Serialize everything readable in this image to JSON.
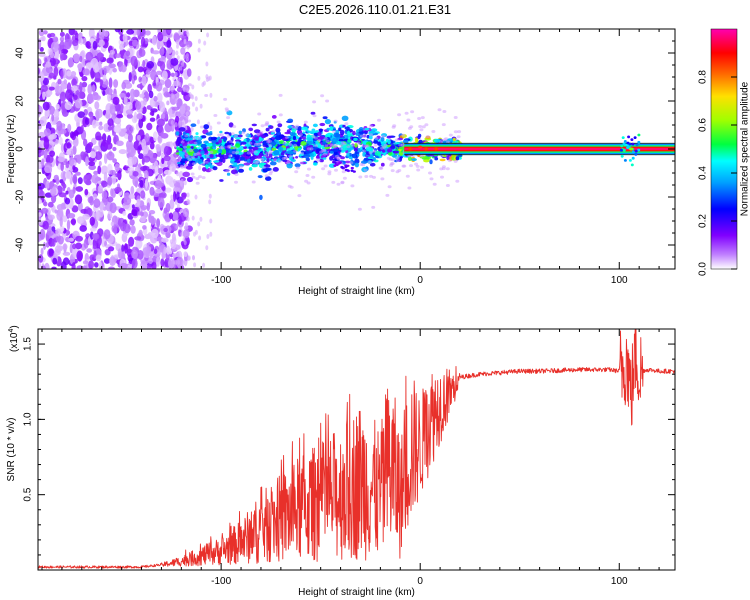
{
  "title": "C2E5.2026.110.01.21.E31",
  "chart_data": [
    {
      "type": "heatmap",
      "name": "spectrogram",
      "xlabel": "Height of straight line (km)",
      "ylabel": "Frequency (Hz)",
      "xlim": [
        -192,
        128
      ],
      "ylim": [
        -50,
        50
      ],
      "xticks": [
        -100,
        0,
        100
      ],
      "yticks": [
        -40,
        -20,
        0,
        20,
        40
      ],
      "colorbar": {
        "label": "Normalized spectral amplitude",
        "range": [
          0,
          1
        ],
        "ticks": [
          "0.0",
          "0.2",
          "0.4",
          "0.6",
          "0.8"
        ],
        "colors": [
          "#ffffff",
          "#8a00ff",
          "#0000ff",
          "#00c8ff",
          "#00ff00",
          "#c8ff00",
          "#ffc000",
          "#ff0000",
          "#ff00b0"
        ]
      },
      "regions": [
        {
          "label": "noise",
          "x_range": [
            -192,
            -120
          ],
          "freq_spread": 50,
          "amplitude": 0.08
        },
        {
          "label": "signal band",
          "x_range": [
            -120,
            20
          ],
          "center_hz": 0,
          "spread_hz": 8,
          "amplitude": 0.4
        },
        {
          "label": "carrier line",
          "x_range": [
            0,
            128
          ],
          "center_hz": 0,
          "amplitude": 1.0
        },
        {
          "label": "burst",
          "x": 106,
          "center_hz": 0,
          "amplitude": 0.5
        }
      ]
    },
    {
      "type": "line",
      "name": "snr",
      "xlabel": "Height of straight line (km)",
      "ylabel": "SNR (10 * v/v)",
      "y_multiplier": "(x10",
      "y_multiplier_exp": "4",
      "y_multiplier_close": ")",
      "xlim": [
        -192,
        128
      ],
      "ylim": [
        0,
        1.6
      ],
      "xticks": [
        -100,
        0,
        100
      ],
      "yticks": [
        0.5,
        1.0,
        1.5
      ],
      "series": [
        {
          "name": "SNR",
          "color": "#e8302a",
          "x": [
            -192,
            -140,
            -120,
            -100,
            -90,
            -80,
            -70,
            -60,
            -50,
            -40,
            -35,
            -30,
            -20,
            -15,
            -10,
            -5,
            0,
            5,
            10,
            20,
            30,
            40,
            50,
            60,
            80,
            95,
            100,
            104,
            106,
            108,
            110,
            115,
            120,
            128
          ],
          "y": [
            0.02,
            0.02,
            0.05,
            0.12,
            0.2,
            0.35,
            0.45,
            0.55,
            0.6,
            0.68,
            0.75,
            0.82,
            0.6,
            1.0,
            0.55,
            1.1,
            0.95,
            1.2,
            1.25,
            1.28,
            1.3,
            1.31,
            1.32,
            1.32,
            1.33,
            1.33,
            1.32,
            1.4,
            1.15,
            1.45,
            1.32,
            1.33,
            1.32,
            1.32
          ]
        }
      ]
    }
  ]
}
